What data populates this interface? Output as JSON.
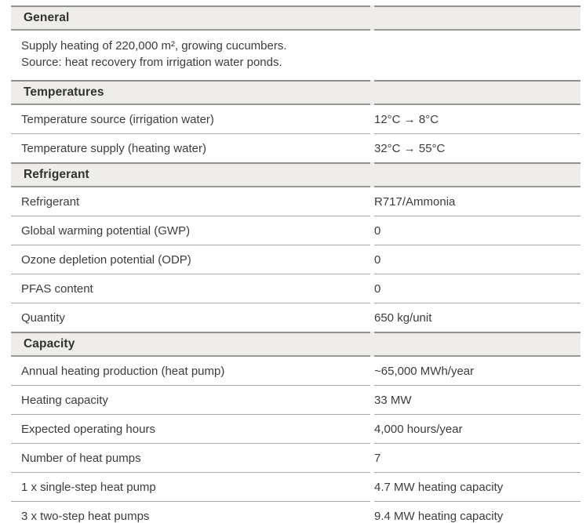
{
  "colors": {
    "page_background": "#ffffff",
    "text": "#3d3c3a",
    "section_header_background": "#eeedeb",
    "section_border_heavy": "#93918e",
    "row_border": "#aaa8a5"
  },
  "sections": [
    {
      "title": "General",
      "description_lines": [
        "Supply heating of 220,000 m², growing cucumbers.",
        "Source: heat recovery from irrigation water ponds."
      ]
    },
    {
      "title": "Temperatures",
      "rows": [
        {
          "label": "Temperature source (irrigation water)",
          "value": "12°C → 8°C"
        },
        {
          "label": "Temperature supply (heating water)",
          "value": "32°C → 55°C"
        }
      ]
    },
    {
      "title": "Refrigerant",
      "rows": [
        {
          "label": "Refrigerant",
          "value": "R717/Ammonia"
        },
        {
          "label": "Global warming potential (GWP)",
          "value": "0"
        },
        {
          "label": "Ozone depletion potential (ODP)",
          "value": "0"
        },
        {
          "label": "PFAS content",
          "value": "0"
        },
        {
          "label": "Quantity",
          "value": "650 kg/unit"
        }
      ]
    },
    {
      "title": "Capacity",
      "rows": [
        {
          "label": "Annual heating production (heat pump)",
          "value": "~65,000 MWh/year"
        },
        {
          "label": "Heating capacity",
          "value": "33 MW"
        },
        {
          "label": "Expected operating hours",
          "value": "4,000 hours/year"
        },
        {
          "label": "Number of heat pumps",
          "value": "7"
        },
        {
          "label": "1 x single-step heat pump",
          "value": "4.7 MW heating capacity"
        },
        {
          "label": "3 x two-step heat pumps",
          "value": "9.4 MW heating capacity"
        }
      ]
    }
  ]
}
